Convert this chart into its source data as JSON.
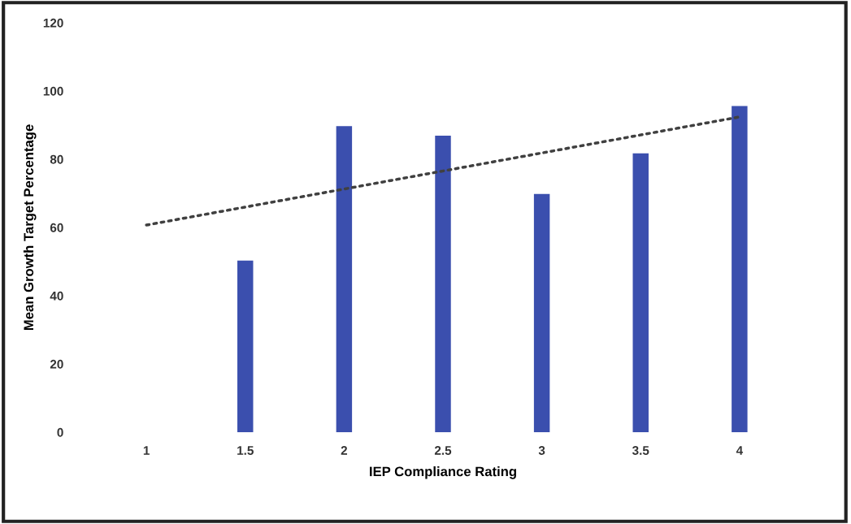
{
  "chart_data": {
    "type": "bar",
    "xlabel": "IEP Compliance Rating",
    "ylabel": "Mean Growth Target Percentage",
    "categories": [
      "1",
      "1.5",
      "2",
      "2.5",
      "3",
      "3.5",
      "4"
    ],
    "ylim": [
      0,
      120
    ],
    "yticks": [
      0,
      20,
      40,
      60,
      80,
      100,
      120
    ],
    "grid": false,
    "legend": false,
    "series": [
      {
        "color": "#3b4fae",
        "values": [
          0,
          50.3,
          89.7,
          86.9,
          69.8,
          81.7,
          95.6
        ]
      },
      {
        "type": "line",
        "color": "#404040",
        "line_style": "dotted",
        "marker": "none",
        "x": [
          "1",
          "4"
        ],
        "values": [
          60.7,
          92.4
        ]
      }
    ]
  }
}
